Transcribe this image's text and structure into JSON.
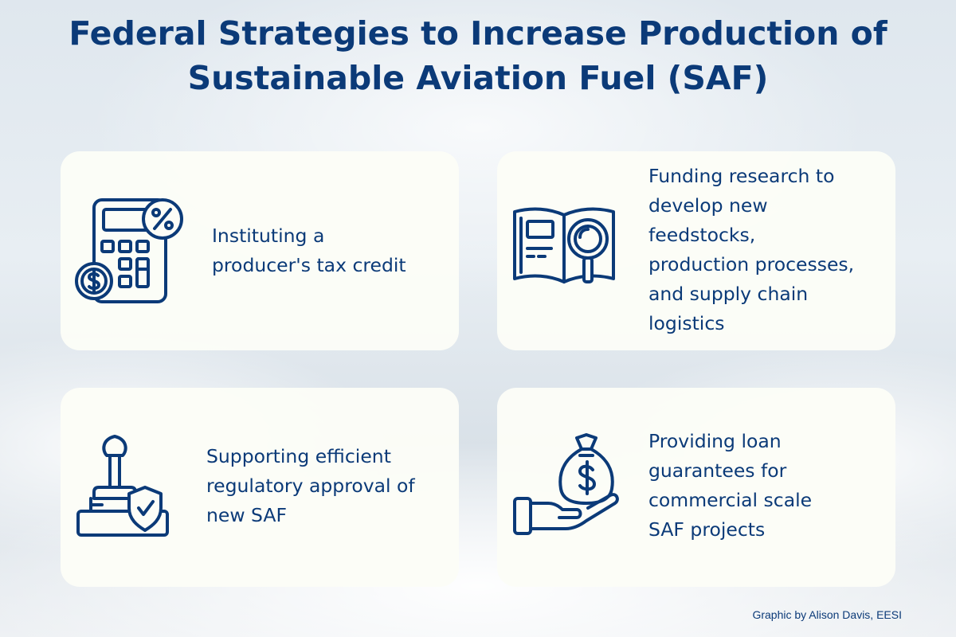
{
  "title": {
    "line1": "Federal Strategies to Increase Production of",
    "line2": "Sustainable Aviation Fuel (SAF)"
  },
  "cards": [
    {
      "icon": "calculator-percent-dollar-icon",
      "text": "Instituting a\nproducer's tax credit"
    },
    {
      "icon": "book-magnifier-icon",
      "text": "Funding research to\ndevelop new\nfeedstocks,\nproduction processes,\nand supply chain\nlogistics"
    },
    {
      "icon": "approval-stamp-shield-icon",
      "text": "Supporting efficient\nregulatory approval of\nnew SAF"
    },
    {
      "icon": "hand-money-bag-icon",
      "text": "Providing loan\nguarantees for\ncommercial scale\nSAF projects"
    }
  ],
  "credit": "Graphic by Alison Davis, EESI",
  "colors": {
    "primary": "#0b3a78",
    "card_bg": "#fcfdf7"
  }
}
